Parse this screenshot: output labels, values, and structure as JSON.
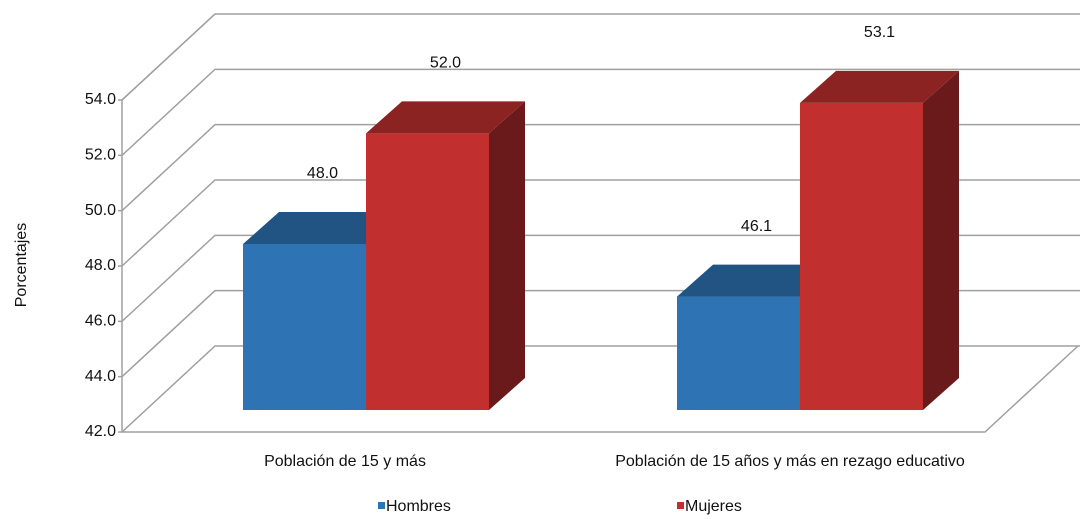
{
  "chart_data": {
    "type": "bar3d",
    "y_label": "Porcentajes",
    "categories": [
      "Población de 15 y más",
      "Población de 15 años y más en rezago educativo"
    ],
    "series": [
      {
        "name": "Hombres",
        "color": "#2e74b5",
        "values": [
          48.0,
          46.1
        ],
        "value_labels": [
          "48.0",
          "46.1"
        ]
      },
      {
        "name": "Mujeres",
        "color": "#c1302f",
        "values": [
          52.0,
          53.1
        ],
        "value_labels": [
          "52.0",
          "53.1"
        ]
      }
    ],
    "ylim": [
      42,
      54
    ],
    "yticks": [
      {
        "value": 42,
        "label": "42.0"
      },
      {
        "value": 44,
        "label": "44.0"
      },
      {
        "value": 46,
        "label": "46.0"
      },
      {
        "value": 48,
        "label": "48.0"
      },
      {
        "value": 50,
        "label": "50.0"
      },
      {
        "value": 52,
        "label": "52.0"
      },
      {
        "value": 54,
        "label": "54.0"
      }
    ],
    "grid": true
  }
}
